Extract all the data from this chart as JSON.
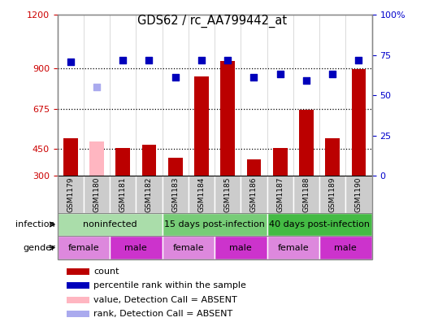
{
  "title": "GDS62 / rc_AA799442_at",
  "samples": [
    "GSM1179",
    "GSM1180",
    "GSM1181",
    "GSM1182",
    "GSM1183",
    "GSM1184",
    "GSM1185",
    "GSM1186",
    "GSM1187",
    "GSM1188",
    "GSM1189",
    "GSM1190"
  ],
  "count_values": [
    510,
    490,
    455,
    475,
    400,
    855,
    940,
    390,
    455,
    670,
    510,
    895
  ],
  "count_absent": [
    false,
    true,
    false,
    false,
    false,
    false,
    false,
    false,
    false,
    false,
    false,
    false
  ],
  "percentile_values": [
    71,
    55,
    72,
    72,
    61,
    72,
    72,
    61,
    63,
    59,
    63,
    72
  ],
  "percentile_absent": [
    false,
    true,
    false,
    false,
    false,
    false,
    false,
    false,
    false,
    false,
    false,
    false
  ],
  "ylim_left": [
    300,
    1200
  ],
  "ylim_right": [
    0,
    100
  ],
  "yticks_left": [
    300,
    450,
    675,
    900,
    1200
  ],
  "yticks_right": [
    0,
    25,
    50,
    75,
    100
  ],
  "bar_color": "#bb0000",
  "bar_absent_color": "#ffb6c1",
  "dot_color": "#0000bb",
  "dot_absent_color": "#aaaaee",
  "infection_groups": [
    {
      "label": "noninfected",
      "start": 0,
      "end": 4,
      "color": "#aaddaa"
    },
    {
      "label": "15 days post-infection",
      "start": 4,
      "end": 8,
      "color": "#77cc77"
    },
    {
      "label": "40 days post-infection",
      "start": 8,
      "end": 12,
      "color": "#44bb44"
    }
  ],
  "gender_groups": [
    {
      "label": "female",
      "start": 0,
      "end": 2,
      "color": "#dd88dd"
    },
    {
      "label": "male",
      "start": 2,
      "end": 4,
      "color": "#cc33cc"
    },
    {
      "label": "female",
      "start": 4,
      "end": 6,
      "color": "#dd88dd"
    },
    {
      "label": "male",
      "start": 6,
      "end": 8,
      "color": "#cc33cc"
    },
    {
      "label": "female",
      "start": 8,
      "end": 10,
      "color": "#dd88dd"
    },
    {
      "label": "male",
      "start": 10,
      "end": 12,
      "color": "#cc33cc"
    }
  ],
  "legend_items": [
    {
      "label": "count",
      "color": "#bb0000"
    },
    {
      "label": "percentile rank within the sample",
      "color": "#0000bb"
    },
    {
      "label": "value, Detection Call = ABSENT",
      "color": "#ffb6c1"
    },
    {
      "label": "rank, Detection Call = ABSENT",
      "color": "#aaaaee"
    }
  ],
  "infection_label": "infection",
  "gender_label": "gender",
  "bar_width": 0.55,
  "dot_size": 40,
  "sample_box_color": "#cccccc",
  "grid_color": "#000000",
  "ytick_left_color": "#cc0000",
  "ytick_right_color": "#0000cc"
}
